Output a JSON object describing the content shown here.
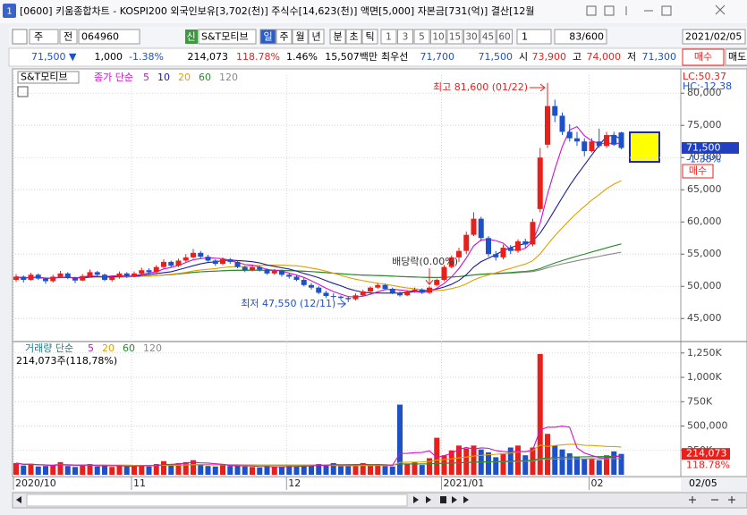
{
  "title_bar": {
    "icon": "1",
    "title": "[0600] 키움종합차트 - KOSPI200 외국인보유[3,702(천)] 주식수[14,623(천)] 액면[5,000] 자본금[731(억)] 결산[12월"
  },
  "toolbar": {
    "kind": "주",
    "market": "전",
    "code": "064960",
    "credit": "신",
    "name": "S&T모티브",
    "periods": [
      "일",
      "주",
      "월",
      "년",
      "분",
      "초",
      "틱"
    ],
    "intervals": [
      "1",
      "3",
      "5",
      "10",
      "15",
      "30",
      "45",
      "60"
    ],
    "count": "1",
    "range": "83/600",
    "date": "2021/02/05"
  },
  "quote": {
    "price": "71,500 ▼",
    "change": "1,000",
    "rate": "-1.38%",
    "volume": "214,073",
    "volume_ratio": "118.78%",
    "turnover": "1.46%",
    "amount": "15,507백만",
    "best_label": "최우선",
    "ask": "71,700",
    "bid": "71,500",
    "open_label": "시",
    "open": "73,900",
    "high_label": "고",
    "high": "74,000",
    "low_label": "저",
    "low": "71,300",
    "buy": "매수",
    "sell": "매도"
  },
  "price_chart": {
    "name": "S&T모티브",
    "legend_label": "종가 단순",
    "ma_periods": [
      5,
      10,
      20,
      60,
      120
    ],
    "ma_colors": [
      "#d010d0",
      "#1c1c9c",
      "#e0a000",
      "#2a8a2a",
      "#8a8a8a"
    ],
    "up_color": "#e8201c",
    "down_color": "#1e50c8",
    "ylim": [
      41700,
      81700
    ],
    "yticks": [
      {
        "value": 45000,
        "label": "45,000"
      },
      {
        "value": 50000,
        "label": "50,000"
      },
      {
        "value": 55000,
        "label": "55,000"
      },
      {
        "value": 60000,
        "label": "60,000"
      },
      {
        "value": 65000,
        "label": "65,000"
      },
      {
        "value": 70000,
        "label": "70,000"
      },
      {
        "value": 75000,
        "label": "75,000"
      },
      {
        "value": 80000,
        "label": "80,000"
      }
    ],
    "open": [
      51000,
      51500,
      51000,
      51800,
      51200,
      50800,
      51500,
      52000,
      51300,
      50900,
      51600,
      52200,
      51800,
      51000,
      51400,
      52000,
      51600,
      52000,
      52500,
      52200,
      53000,
      53800,
      53200,
      54000,
      54500,
      55200,
      54600,
      54000,
      53500,
      54200,
      53800,
      53000,
      52500,
      53000,
      52600,
      52000,
      52400,
      51800,
      51500,
      51000,
      50200,
      49800,
      49000,
      48500,
      48400,
      48200,
      48000,
      48600,
      49200,
      49800,
      50200,
      49600,
      49000,
      48600,
      49200,
      49500,
      49000,
      50200,
      51000,
      53000,
      54500,
      55500,
      58000,
      60500,
      57500,
      55000,
      54500,
      56000,
      55500,
      57000,
      56500,
      62000,
      72000,
      78000,
      76500,
      74000,
      73000,
      72500,
      71000,
      72500,
      71800,
      73500,
      73900
    ],
    "high": [
      51900,
      51700,
      52100,
      52000,
      51400,
      51800,
      52400,
      52200,
      51500,
      51900,
      52600,
      52400,
      52000,
      51700,
      52300,
      52200,
      52300,
      52900,
      52800,
      53300,
      54200,
      54000,
      54300,
      55000,
      55800,
      55500,
      54900,
      54200,
      54500,
      54400,
      54000,
      53200,
      53300,
      53200,
      52800,
      52700,
      52600,
      52000,
      51700,
      51300,
      50500,
      50000,
      49300,
      48900,
      48600,
      48500,
      48900,
      49500,
      50000,
      50500,
      50400,
      49800,
      49200,
      49400,
      49800,
      49700,
      50000,
      51200,
      53300,
      54800,
      56000,
      58500,
      61500,
      60800,
      57800,
      55500,
      56500,
      56400,
      57300,
      57400,
      60500,
      71500,
      81600,
      79000,
      77000,
      75200,
      74000,
      73000,
      73000,
      74500,
      74000,
      74000,
      74000
    ],
    "low": [
      50700,
      50600,
      50900,
      51000,
      50400,
      50600,
      51300,
      51100,
      50500,
      50800,
      51400,
      51500,
      50800,
      50700,
      51200,
      51300,
      51400,
      51800,
      51900,
      52000,
      52800,
      53000,
      53000,
      53700,
      54300,
      54300,
      53800,
      53200,
      53300,
      53500,
      52800,
      52200,
      52300,
      52300,
      51800,
      51800,
      51500,
      51200,
      50800,
      50000,
      49500,
      48800,
      48200,
      48000,
      47900,
      47550,
      47800,
      48400,
      49000,
      49600,
      49400,
      48800,
      48400,
      48500,
      49000,
      48800,
      48800,
      50000,
      50800,
      52800,
      53800,
      55000,
      57800,
      57000,
      54600,
      54000,
      54200,
      55000,
      55200,
      56000,
      56200,
      61500,
      71500,
      75500,
      73500,
      72500,
      71800,
      70200,
      70800,
      71500,
      71500,
      71800,
      71300
    ],
    "close": [
      51500,
      51000,
      51800,
      51200,
      50800,
      51500,
      52000,
      51300,
      50900,
      51600,
      52200,
      51800,
      51000,
      51400,
      52000,
      51600,
      52000,
      52500,
      52200,
      53000,
      53800,
      53200,
      54000,
      54500,
      55200,
      54600,
      54000,
      53500,
      54200,
      53800,
      53000,
      52500,
      53000,
      52600,
      52000,
      52400,
      51800,
      51500,
      51000,
      50200,
      49800,
      49000,
      48500,
      48400,
      48200,
      48000,
      48600,
      49200,
      49800,
      50200,
      49600,
      49000,
      48600,
      49200,
      49500,
      49000,
      49800,
      51000,
      53000,
      54500,
      55500,
      58000,
      60500,
      57500,
      55000,
      54500,
      56000,
      55500,
      57000,
      56500,
      60000,
      70000,
      78000,
      76500,
      74000,
      73000,
      72500,
      71000,
      72500,
      71800,
      73500,
      72000,
      71500
    ],
    "high_note": "최고 81,600 (01/22)",
    "low_note": "최저 47,550 (12/11)",
    "dividend_note": "배당락(0.00%)",
    "lc": "LC:50.37",
    "hc": "HC:-12.38",
    "last_label": "71,500",
    "last_rate": "-1.38%",
    "buy": "매수"
  },
  "volume_chart": {
    "legend_label": "거래량 단순",
    "ma_periods": [
      5,
      20,
      60,
      120
    ],
    "ma_colors": [
      "#d010d0",
      "#e0a000",
      "#2a8a2a",
      "#8a8a8a"
    ],
    "note": "214,073주(118,78%)",
    "ylim": [
      0,
      1340000
    ],
    "yticks": [
      {
        "value": 250000,
        "label": "250K"
      },
      {
        "value": 500000,
        "label": "500,000"
      },
      {
        "value": 750000,
        "label": "750K"
      },
      {
        "value": 1000000,
        "label": "1,000K"
      },
      {
        "value": 1250000,
        "label": "1,250K"
      }
    ],
    "values": [
      120000,
      95000,
      110000,
      85000,
      90000,
      100000,
      130000,
      90000,
      80000,
      95000,
      110000,
      85000,
      90000,
      80000,
      100000,
      85000,
      90000,
      100000,
      85000,
      110000,
      140000,
      100000,
      120000,
      130000,
      150000,
      110000,
      90000,
      85000,
      100000,
      90000,
      95000,
      85000,
      80000,
      75000,
      90000,
      80000,
      85000,
      90000,
      85000,
      100000,
      95000,
      110000,
      100000,
      120000,
      90000,
      100000,
      110000,
      120000,
      100000,
      95000,
      90000,
      85000,
      720000,
      110000,
      130000,
      100000,
      170000,
      380000,
      200000,
      250000,
      300000,
      270000,
      300000,
      260000,
      230000,
      180000,
      220000,
      280000,
      300000,
      200000,
      280000,
      1240000,
      420000,
      300000,
      260000,
      220000,
      180000,
      160000,
      170000,
      150000,
      200000,
      240000,
      214073
    ],
    "last_label": "214,073",
    "last_rate": "118.78%"
  },
  "x_axis": {
    "labels": [
      "2020/10",
      "11",
      "12",
      "2021/01",
      "02"
    ],
    "end": "02/05"
  }
}
